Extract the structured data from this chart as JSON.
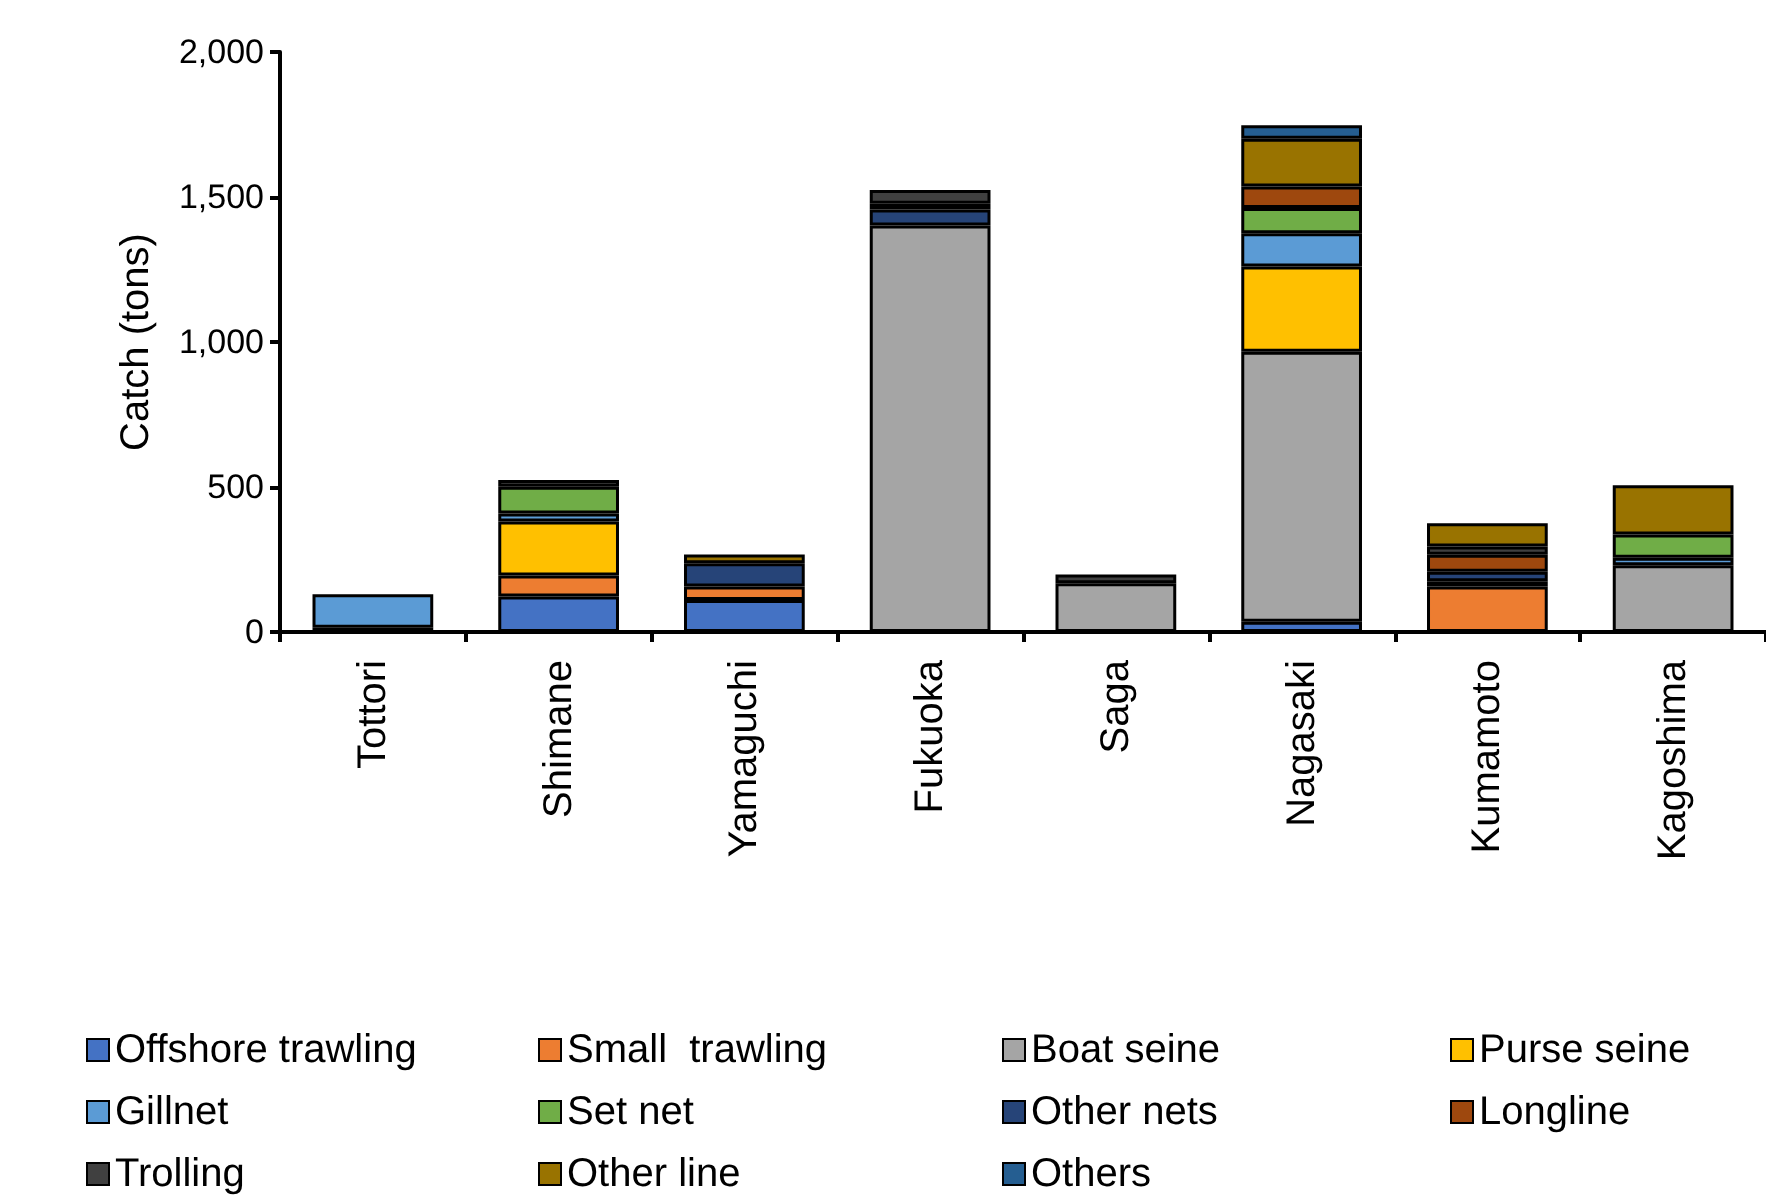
{
  "chart_data": {
    "type": "bar",
    "stacked": true,
    "ylabel": "Catch (tons)",
    "categories": [
      "Tottori",
      "Shimane",
      "Yamaguchi",
      "Fukuoka",
      "Saga",
      "Nagasaki",
      "Kumamoto",
      "Kagoshima"
    ],
    "ylim": [
      0,
      2000
    ],
    "yticks": [
      {
        "value": 0,
        "label": "0"
      },
      {
        "value": 500,
        "label": "500"
      },
      {
        "value": 1000,
        "label": "1,000"
      },
      {
        "value": 1500,
        "label": "1,500"
      },
      {
        "value": 2000,
        "label": "2,000"
      }
    ],
    "grid": false,
    "legend": "bottom",
    "series": [
      {
        "name": "Offshore trawling",
        "color": "#4472c4",
        "values": [
          15,
          122,
          110,
          null,
          null,
          35,
          null,
          null
        ]
      },
      {
        "name": "Small  trawling",
        "color": "#ed7d31",
        "values": [
          null,
          73,
          47,
          null,
          null,
          null,
          157,
          null
        ]
      },
      {
        "name": "Boat seine",
        "color": "#a5a5a5",
        "values": [
          null,
          null,
          null,
          1402,
          168,
          931,
          null,
          230
        ]
      },
      {
        "name": "Purse seine",
        "color": "#ffc000",
        "values": [
          null,
          186,
          null,
          null,
          null,
          294,
          null,
          null
        ]
      },
      {
        "name": "Gillnet",
        "color": "#5b9bd5",
        "values": [
          115,
          28,
          null,
          null,
          null,
          115,
          null,
          26
        ]
      },
      {
        "name": "Set net",
        "color": "#70ad47",
        "values": [
          null,
          92,
          null,
          null,
          null,
          87,
          18,
          80
        ]
      },
      {
        "name": "Other nets",
        "color": "#264478",
        "values": [
          null,
          null,
          80,
          55,
          null,
          null,
          33,
          null
        ]
      },
      {
        "name": "Longline",
        "color": "#9e480e",
        "values": [
          null,
          null,
          null,
          20,
          null,
          74,
          58,
          null
        ]
      },
      {
        "name": "Trolling",
        "color": "#404040",
        "values": [
          null,
          23,
          null,
          47,
          30,
          null,
          29,
          null
        ]
      },
      {
        "name": "Other line",
        "color": "#997300",
        "values": [
          null,
          null,
          30,
          null,
          null,
          165,
          80,
          170
        ]
      },
      {
        "name": "Others",
        "color": "#255e91",
        "values": [
          null,
          null,
          null,
          null,
          null,
          46,
          null,
          null
        ]
      }
    ]
  }
}
